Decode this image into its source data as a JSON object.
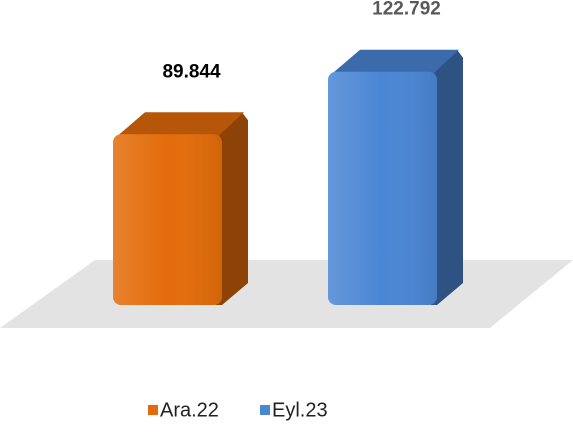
{
  "chart_data": {
    "type": "bar",
    "series": [
      {
        "name": "Ara.22",
        "color": "#e36c0a",
        "values": [
          89.844
        ]
      },
      {
        "name": "Eyl.23",
        "color": "#4a86d4",
        "values": [
          122.792
        ]
      }
    ]
  }
}
